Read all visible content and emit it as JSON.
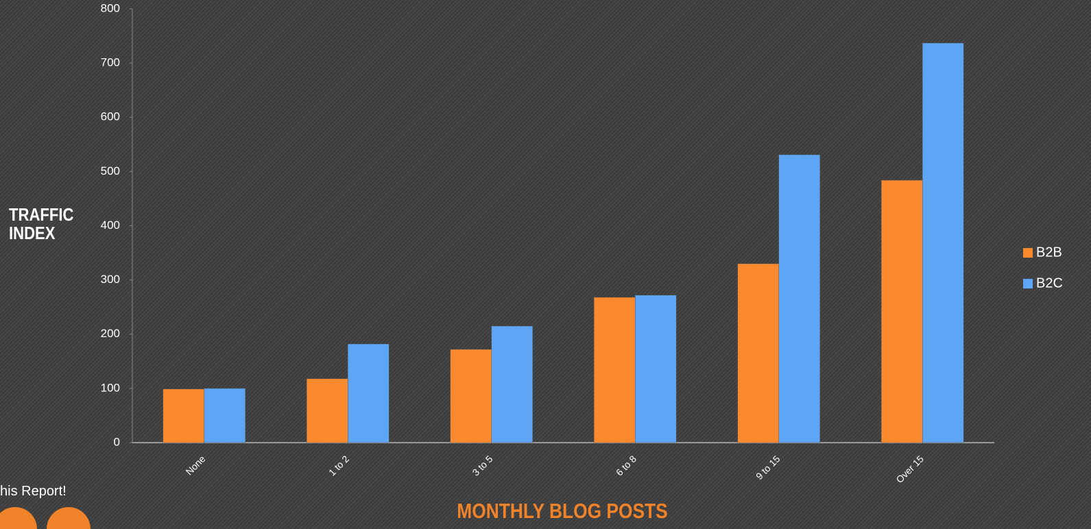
{
  "chart_data": {
    "type": "bar",
    "y_label": "TRAFFIC INDEX",
    "x_label": "MONTHLY BLOG POSTS",
    "categories": [
      "None",
      "1 to 2",
      "3 to 5",
      "6 to 8",
      "9 to 15",
      "Over 15"
    ],
    "series": [
      {
        "name": "B2B",
        "color": "#fb8a2e",
        "values": [
          99,
          118,
          172,
          268,
          330,
          484
        ]
      },
      {
        "name": "B2C",
        "color": "#5ea5f5",
        "values": [
          100,
          182,
          215,
          272,
          531,
          737
        ]
      }
    ],
    "ylim": [
      0,
      800
    ],
    "yticks": [
      0,
      100,
      200,
      300,
      400,
      500,
      600,
      700,
      800
    ],
    "legend": "right"
  },
  "footer": {
    "share_text": "his Report!"
  }
}
